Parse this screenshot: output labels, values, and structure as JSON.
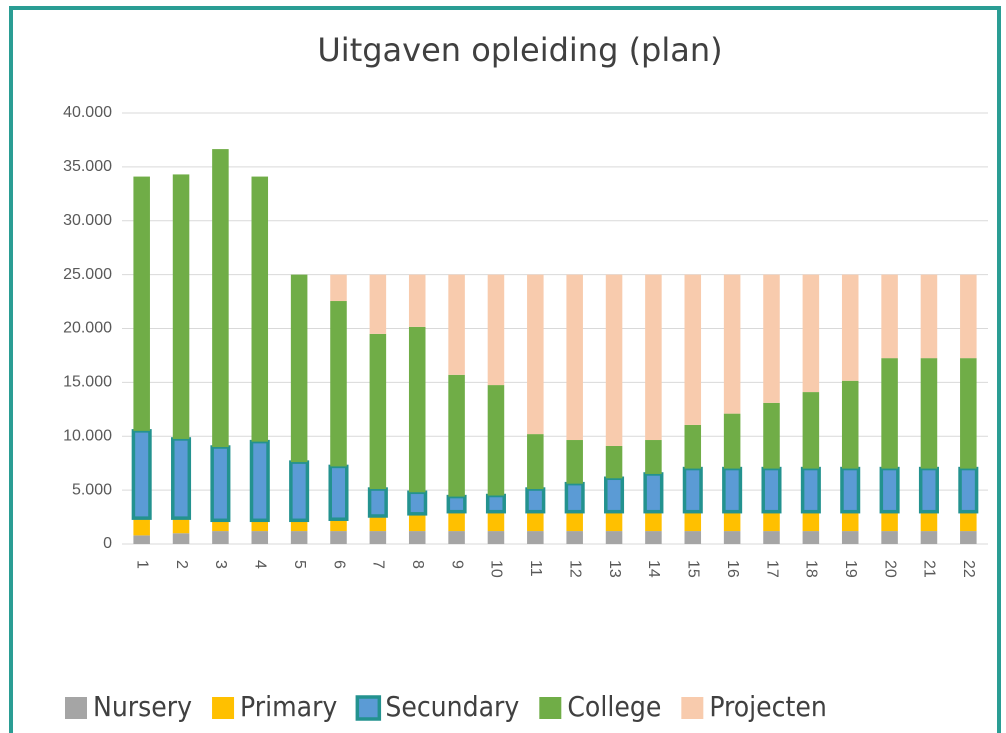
{
  "chart_data": {
    "type": "stacked_bar",
    "title": "Uitgaven opleiding (plan)",
    "categories": [
      "1",
      "2",
      "3",
      "4",
      "5",
      "6",
      "7",
      "8",
      "9",
      "10",
      "11",
      "12",
      "13",
      "14",
      "15",
      "16",
      "17",
      "18",
      "19",
      "20",
      "21",
      "22"
    ],
    "series": [
      {
        "name": "Nursery",
        "color": "#a5a5a5",
        "values": [
          800,
          1000,
          1200,
          1200,
          1200,
          1200,
          1200,
          1200,
          1200,
          1200,
          1200,
          1200,
          1200,
          1200,
          1200,
          1200,
          1200,
          1200,
          1200,
          1200,
          1200,
          1200
        ]
      },
      {
        "name": "Primary",
        "color": "#ffc000",
        "values": [
          1600,
          1400,
          1000,
          1000,
          1000,
          1100,
          1400,
          1600,
          1800,
          1800,
          1800,
          1800,
          1800,
          1800,
          1800,
          1800,
          1800,
          1800,
          1800,
          1800,
          1800,
          1800
        ]
      },
      {
        "name": "Secundary",
        "color": "#5b9bd5",
        "border": "#23928f",
        "values": [
          8100,
          7350,
          6800,
          7300,
          5400,
          4900,
          2500,
          2000,
          1400,
          1500,
          2100,
          2600,
          3100,
          3500,
          4000,
          4000,
          4000,
          4000,
          4000,
          4000,
          4000,
          4000
        ]
      },
      {
        "name": "College",
        "color": "#70ad47",
        "values": [
          23600,
          24550,
          27650,
          24600,
          17400,
          15350,
          14400,
          15350,
          11300,
          10250,
          5100,
          4050,
          3000,
          3150,
          4050,
          5100,
          6100,
          7100,
          8150,
          10250,
          10250,
          10250
        ]
      },
      {
        "name": "Projecten",
        "color": "#f8cbad",
        "values": [
          0,
          0,
          0,
          0,
          0,
          2450,
          5500,
          4850,
          9300,
          10250,
          14800,
          15350,
          15900,
          15350,
          13950,
          12900,
          11900,
          10900,
          9850,
          7750,
          7750,
          7750
        ]
      }
    ],
    "ylim": [
      0,
      40000
    ],
    "yticks": [
      0,
      {
        "value": 5000,
        "label": "5.000"
      },
      {
        "value": 10000,
        "label": "10.000"
      },
      {
        "value": 15000,
        "label": "15.000"
      },
      {
        "value": 20000,
        "label": "20.000"
      },
      {
        "value": 25000,
        "label": "25.000"
      },
      {
        "value": 30000,
        "label": "30.000"
      },
      {
        "value": 35000,
        "label": "35.000"
      },
      {
        "value": 40000,
        "label": "40.000"
      }
    ],
    "grid": true,
    "legend": "bottom"
  }
}
